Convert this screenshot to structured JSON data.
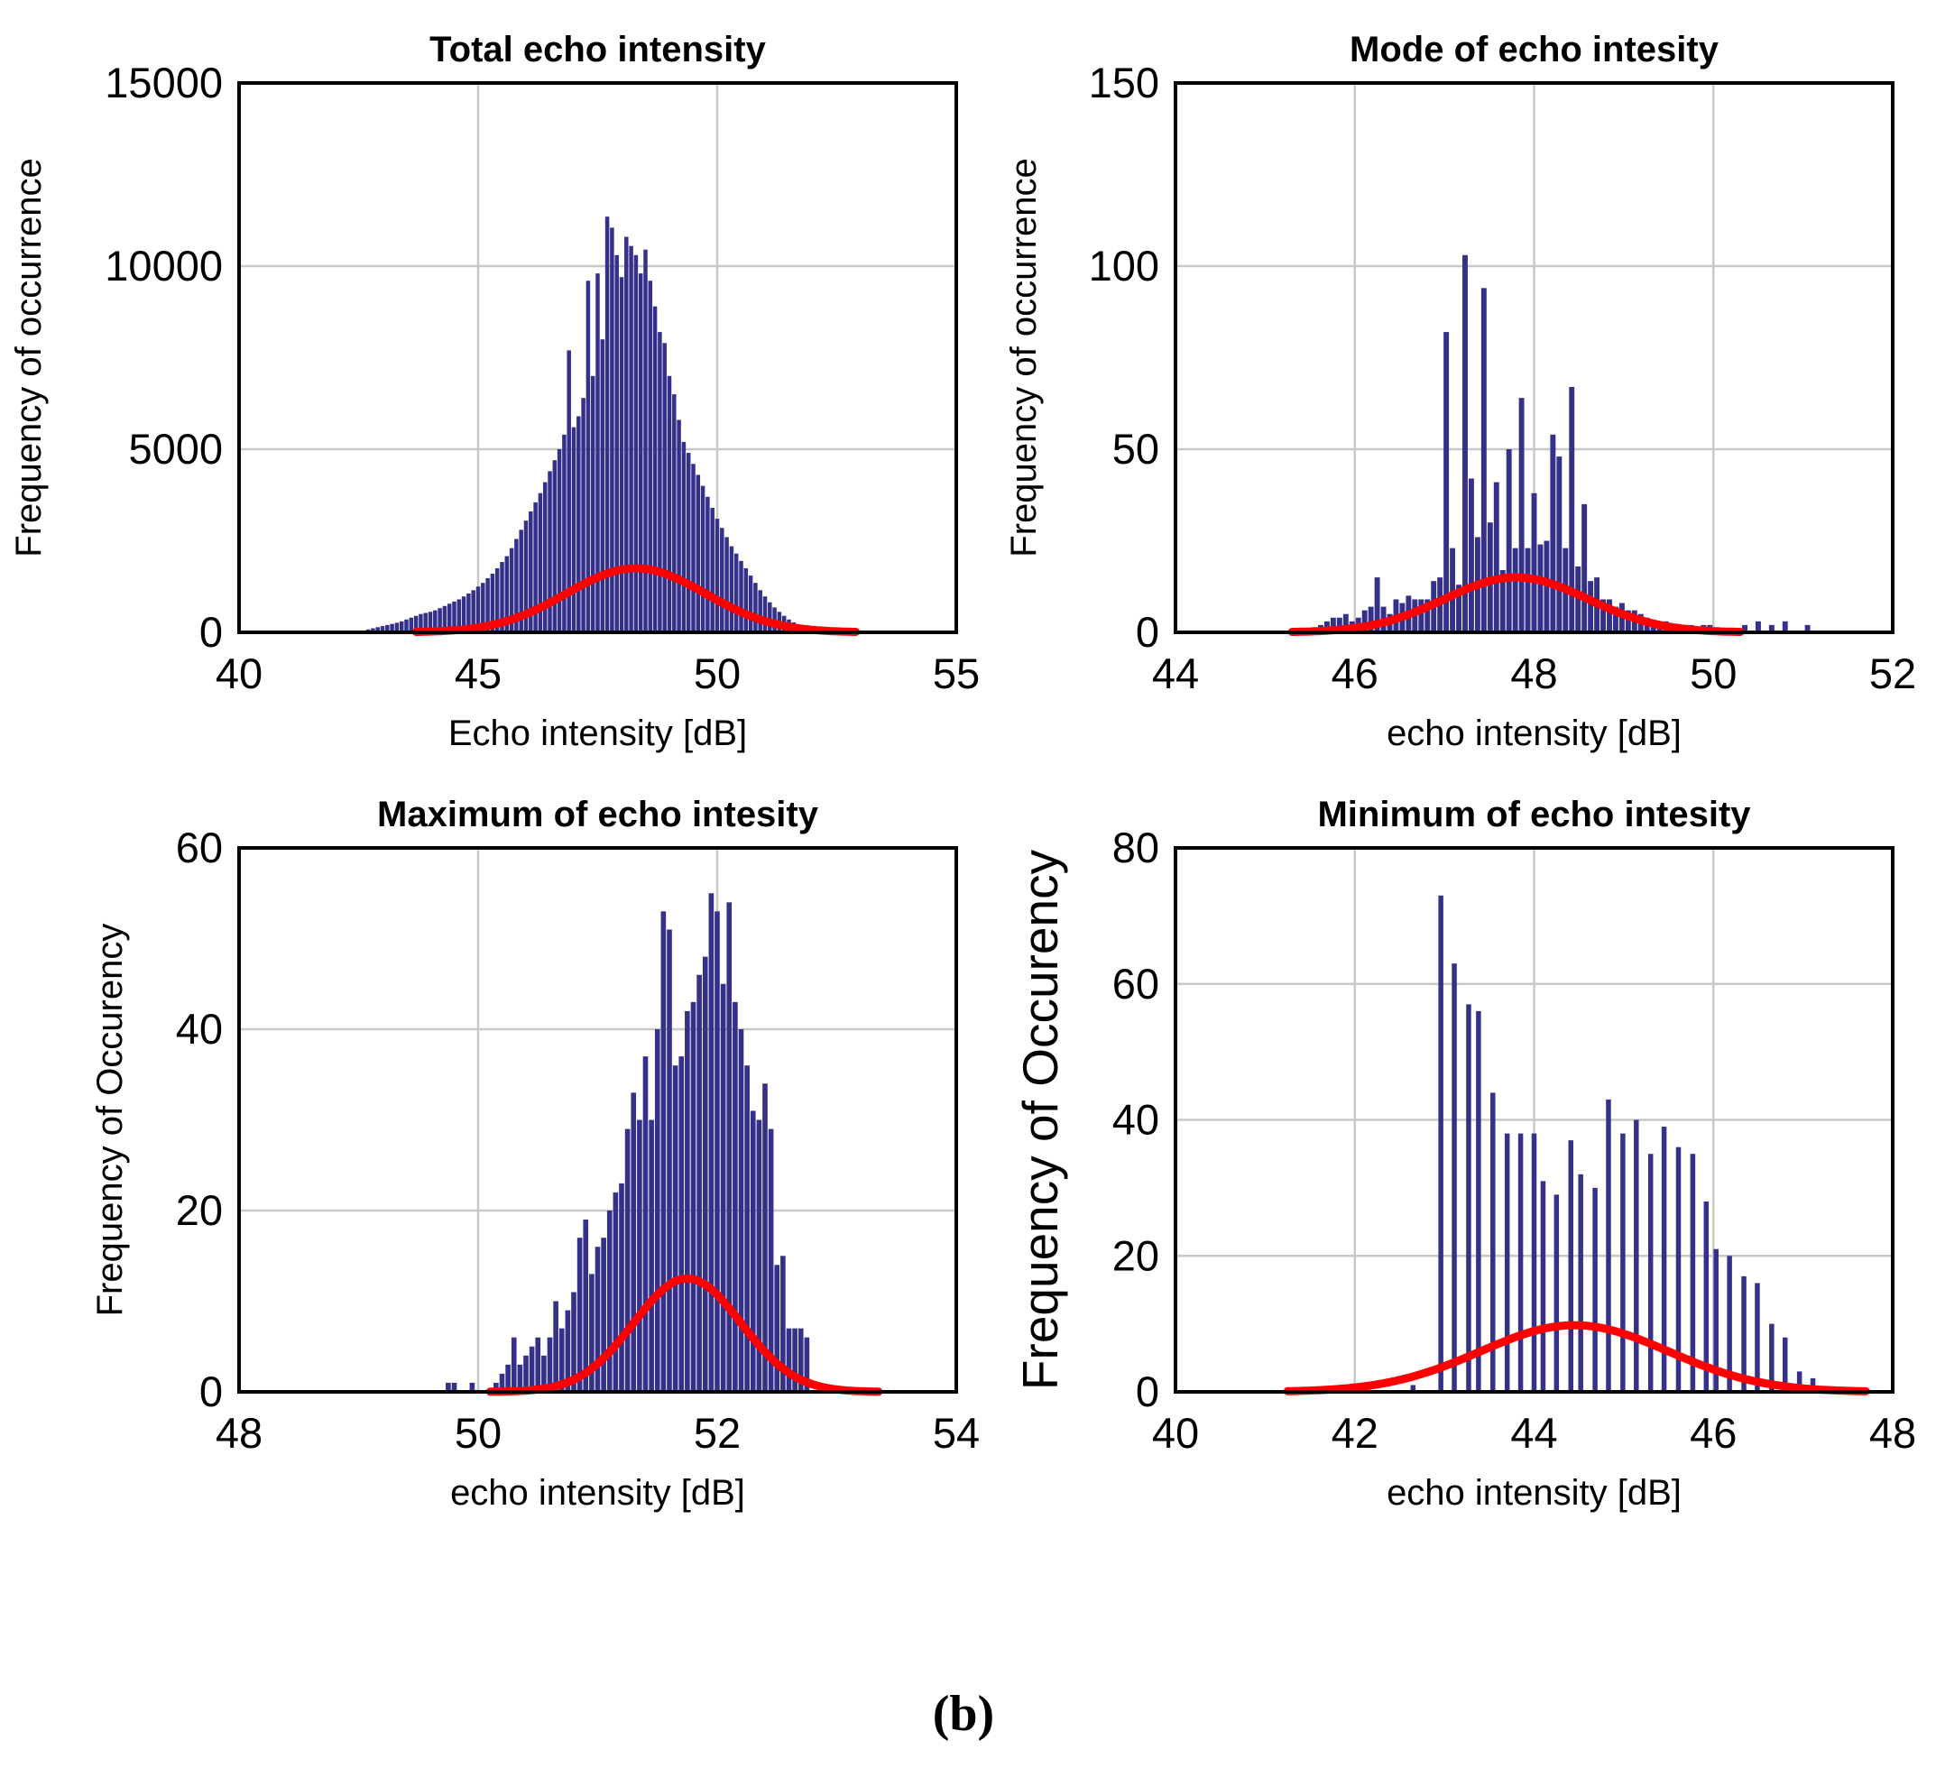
{
  "caption": "(b)",
  "colors": {
    "bar": "#35308a",
    "fit": "#ff0000",
    "grid": "#c8c8c8"
  },
  "chart_data": [
    {
      "type": "bar",
      "title": "Total echo intensity",
      "xlabel": "Echo intensity [dB]",
      "ylabel": "Frequency of occurrence",
      "xlim": [
        40,
        55
      ],
      "ylim": [
        0,
        15000
      ],
      "xticks": [
        40,
        45,
        50,
        55
      ],
      "yticks": [
        0,
        5000,
        10000,
        15000
      ],
      "xtick_labels": [
        "40",
        "45",
        "50",
        "55"
      ],
      "ytick_labels": [
        "0",
        "5000",
        "10000",
        "15000"
      ],
      "bin_width": 0.1,
      "bars": [
        [
          42.7,
          80
        ],
        [
          42.8,
          110
        ],
        [
          42.9,
          140
        ],
        [
          43.0,
          170
        ],
        [
          43.1,
          200
        ],
        [
          43.2,
          230
        ],
        [
          43.3,
          260
        ],
        [
          43.4,
          300
        ],
        [
          43.5,
          350
        ],
        [
          43.6,
          400
        ],
        [
          43.7,
          450
        ],
        [
          43.8,
          500
        ],
        [
          43.9,
          530
        ],
        [
          44.0,
          560
        ],
        [
          44.1,
          600
        ],
        [
          44.2,
          660
        ],
        [
          44.3,
          720
        ],
        [
          44.4,
          780
        ],
        [
          44.5,
          840
        ],
        [
          44.6,
          900
        ],
        [
          44.7,
          980
        ],
        [
          44.8,
          1060
        ],
        [
          44.9,
          1150
        ],
        [
          45.0,
          1250
        ],
        [
          45.1,
          1350
        ],
        [
          45.2,
          1480
        ],
        [
          45.3,
          1600
        ],
        [
          45.4,
          1750
        ],
        [
          45.5,
          1920
        ],
        [
          45.6,
          2080
        ],
        [
          45.7,
          2300
        ],
        [
          45.8,
          2550
        ],
        [
          45.9,
          2800
        ],
        [
          46.0,
          3050
        ],
        [
          46.1,
          3300
        ],
        [
          46.2,
          3550
        ],
        [
          46.3,
          3800
        ],
        [
          46.4,
          4100
        ],
        [
          46.5,
          4400
        ],
        [
          46.6,
          4700
        ],
        [
          46.7,
          5000
        ],
        [
          46.8,
          5400
        ],
        [
          46.9,
          7700
        ],
        [
          47.0,
          5600
        ],
        [
          47.1,
          5900
        ],
        [
          47.2,
          6400
        ],
        [
          47.3,
          9600
        ],
        [
          47.4,
          7000
        ],
        [
          47.5,
          9800
        ],
        [
          47.6,
          8000
        ],
        [
          47.7,
          11350
        ],
        [
          47.8,
          11050
        ],
        [
          47.9,
          10300
        ],
        [
          48.0,
          9700
        ],
        [
          48.1,
          10800
        ],
        [
          48.2,
          10550
        ],
        [
          48.3,
          10300
        ],
        [
          48.4,
          9800
        ],
        [
          48.5,
          10450
        ],
        [
          48.6,
          9600
        ],
        [
          48.7,
          8900
        ],
        [
          48.8,
          8200
        ],
        [
          48.9,
          7900
        ],
        [
          49.0,
          7000
        ],
        [
          49.1,
          6500
        ],
        [
          49.2,
          5800
        ],
        [
          49.3,
          5200
        ],
        [
          49.4,
          4900
        ],
        [
          49.5,
          4600
        ],
        [
          49.6,
          4300
        ],
        [
          49.7,
          4000
        ],
        [
          49.8,
          3700
        ],
        [
          49.9,
          3400
        ],
        [
          50.0,
          3100
        ],
        [
          50.1,
          2850
        ],
        [
          50.2,
          2600
        ],
        [
          50.3,
          2350
        ],
        [
          50.4,
          2150
        ],
        [
          50.5,
          1950
        ],
        [
          50.6,
          1750
        ],
        [
          50.7,
          1550
        ],
        [
          50.8,
          1350
        ],
        [
          50.9,
          1150
        ],
        [
          51.0,
          980
        ],
        [
          51.1,
          820
        ],
        [
          51.2,
          680
        ],
        [
          51.3,
          560
        ],
        [
          51.4,
          450
        ],
        [
          51.5,
          350
        ],
        [
          51.6,
          270
        ],
        [
          51.7,
          200
        ],
        [
          51.8,
          140
        ],
        [
          51.9,
          90
        ],
        [
          52.0,
          50
        ]
      ],
      "fit": {
        "mean": 48.3,
        "sigma": 1.45,
        "peak": 1750,
        "x_range": [
          43.7,
          52.9
        ]
      }
    },
    {
      "type": "bar",
      "title": "Mode of echo intesity",
      "xlabel": "echo intensity [dB]",
      "ylabel": "Frequency of occurrence",
      "xlim": [
        44,
        52
      ],
      "ylim": [
        0,
        150
      ],
      "xticks": [
        44,
        46,
        48,
        50,
        52
      ],
      "yticks": [
        0,
        50,
        100,
        150
      ],
      "xtick_labels": [
        "44",
        "46",
        "48",
        "50",
        "52"
      ],
      "ytick_labels": [
        "0",
        "50",
        "100",
        "150"
      ],
      "bin_width": 0.07,
      "bars": [
        [
          45.55,
          1
        ],
        [
          45.62,
          2
        ],
        [
          45.69,
          3
        ],
        [
          45.76,
          4
        ],
        [
          45.83,
          4
        ],
        [
          45.9,
          5
        ],
        [
          45.97,
          3
        ],
        [
          46.04,
          4
        ],
        [
          46.11,
          6
        ],
        [
          46.18,
          7
        ],
        [
          46.25,
          15
        ],
        [
          46.32,
          7
        ],
        [
          46.39,
          5
        ],
        [
          46.46,
          9
        ],
        [
          46.53,
          8
        ],
        [
          46.6,
          10
        ],
        [
          46.67,
          9
        ],
        [
          46.74,
          9
        ],
        [
          46.81,
          9
        ],
        [
          46.88,
          14
        ],
        [
          46.95,
          15
        ],
        [
          47.02,
          82
        ],
        [
          47.09,
          23
        ],
        [
          47.16,
          13
        ],
        [
          47.23,
          103
        ],
        [
          47.3,
          42
        ],
        [
          47.37,
          26
        ],
        [
          47.44,
          94
        ],
        [
          47.51,
          30
        ],
        [
          47.58,
          41
        ],
        [
          47.65,
          17
        ],
        [
          47.72,
          50
        ],
        [
          47.79,
          23
        ],
        [
          47.86,
          64
        ],
        [
          47.93,
          23
        ],
        [
          48.0,
          38
        ],
        [
          48.07,
          24
        ],
        [
          48.14,
          25
        ],
        [
          48.21,
          54
        ],
        [
          48.28,
          48
        ],
        [
          48.35,
          23
        ],
        [
          48.42,
          67
        ],
        [
          48.49,
          18
        ],
        [
          48.56,
          35
        ],
        [
          48.63,
          14
        ],
        [
          48.7,
          15
        ],
        [
          48.77,
          9
        ],
        [
          48.84,
          9
        ],
        [
          48.91,
          7
        ],
        [
          48.98,
          8
        ],
        [
          49.05,
          6
        ],
        [
          49.12,
          6
        ],
        [
          49.19,
          5
        ],
        [
          49.26,
          4
        ],
        [
          49.33,
          3
        ],
        [
          49.4,
          3
        ],
        [
          49.47,
          3
        ],
        [
          49.54,
          2
        ],
        [
          49.61,
          2
        ],
        [
          49.68,
          2
        ],
        [
          49.75,
          2
        ],
        [
          49.82,
          1
        ],
        [
          49.89,
          2
        ],
        [
          49.96,
          2
        ],
        [
          50.03,
          1
        ],
        [
          50.2,
          1
        ],
        [
          50.35,
          2
        ],
        [
          50.5,
          3
        ],
        [
          50.65,
          2
        ],
        [
          50.8,
          3
        ],
        [
          51.05,
          2
        ]
      ],
      "fit": {
        "mean": 47.8,
        "sigma": 0.8,
        "peak": 15,
        "x_range": [
          45.3,
          50.3
        ]
      }
    },
    {
      "type": "bar",
      "title": "Maximum of echo intesity",
      "xlabel": "echo intensity [dB]",
      "ylabel": "Frequency of Occurency",
      "xlim": [
        48,
        54
      ],
      "ylim": [
        0,
        60
      ],
      "xticks": [
        48,
        50,
        52,
        54
      ],
      "yticks": [
        0,
        20,
        40,
        60
      ],
      "xtick_labels": [
        "48",
        "50",
        "52",
        "54"
      ],
      "ytick_labels": [
        "0",
        "20",
        "40",
        "60"
      ],
      "bin_width": 0.05,
      "bars": [
        [
          49.75,
          1
        ],
        [
          49.8,
          1
        ],
        [
          49.95,
          1
        ],
        [
          50.15,
          1
        ],
        [
          50.2,
          2
        ],
        [
          50.25,
          3
        ],
        [
          50.3,
          6
        ],
        [
          50.35,
          3
        ],
        [
          50.4,
          4
        ],
        [
          50.45,
          5
        ],
        [
          50.5,
          6
        ],
        [
          50.55,
          4
        ],
        [
          50.6,
          6
        ],
        [
          50.65,
          10
        ],
        [
          50.7,
          7
        ],
        [
          50.75,
          9
        ],
        [
          50.8,
          11
        ],
        [
          50.85,
          17
        ],
        [
          50.9,
          19
        ],
        [
          50.95,
          13
        ],
        [
          51.0,
          16
        ],
        [
          51.05,
          17
        ],
        [
          51.1,
          20
        ],
        [
          51.15,
          22
        ],
        [
          51.2,
          23
        ],
        [
          51.25,
          29
        ],
        [
          51.3,
          33
        ],
        [
          51.35,
          30
        ],
        [
          51.4,
          37
        ],
        [
          51.45,
          30
        ],
        [
          51.5,
          40
        ],
        [
          51.55,
          53
        ],
        [
          51.6,
          51
        ],
        [
          51.65,
          36
        ],
        [
          51.7,
          37
        ],
        [
          51.75,
          42
        ],
        [
          51.8,
          43
        ],
        [
          51.85,
          46
        ],
        [
          51.9,
          48
        ],
        [
          51.95,
          55
        ],
        [
          52.0,
          53
        ],
        [
          52.05,
          45
        ],
        [
          52.1,
          54
        ],
        [
          52.15,
          43
        ],
        [
          52.2,
          40
        ],
        [
          52.25,
          36
        ],
        [
          52.3,
          31
        ],
        [
          52.35,
          30
        ],
        [
          52.4,
          34
        ],
        [
          52.45,
          29
        ],
        [
          52.5,
          14
        ],
        [
          52.55,
          15
        ],
        [
          52.6,
          7
        ],
        [
          52.65,
          7
        ],
        [
          52.7,
          7
        ],
        [
          52.75,
          6
        ]
      ],
      "fit": {
        "mean": 51.75,
        "sigma": 0.45,
        "peak": 12.5,
        "x_range": [
          50.1,
          53.35
        ]
      }
    },
    {
      "type": "bar",
      "title": "Minimum of echo intesity",
      "xlabel": "echo intensity [dB]",
      "ylabel": "Frequency of Occurency",
      "xlim": [
        40,
        48
      ],
      "ylim": [
        0,
        80
      ],
      "xticks": [
        40,
        42,
        44,
        46,
        48
      ],
      "yticks": [
        0,
        20,
        40,
        60,
        80
      ],
      "xtick_labels": [
        "40",
        "42",
        "44",
        "46",
        "48"
      ],
      "ytick_labels": [
        "0",
        "20",
        "40",
        "60",
        "80"
      ],
      "bin_width": 0.065,
      "bars": [
        [
          42.65,
          1
        ],
        [
          42.96,
          73
        ],
        [
          43.11,
          63
        ],
        [
          43.27,
          57
        ],
        [
          43.38,
          56
        ],
        [
          43.54,
          44
        ],
        [
          43.7,
          38
        ],
        [
          43.85,
          38
        ],
        [
          44.0,
          38
        ],
        [
          44.1,
          31
        ],
        [
          44.25,
          29
        ],
        [
          44.41,
          37
        ],
        [
          44.52,
          32
        ],
        [
          44.68,
          30
        ],
        [
          44.83,
          43
        ],
        [
          44.99,
          38
        ],
        [
          45.14,
          40
        ],
        [
          45.3,
          35
        ],
        [
          45.45,
          39
        ],
        [
          45.61,
          36
        ],
        [
          45.77,
          35
        ],
        [
          45.92,
          28
        ],
        [
          46.03,
          21
        ],
        [
          46.18,
          20
        ],
        [
          46.34,
          17
        ],
        [
          46.49,
          16
        ],
        [
          46.65,
          10
        ],
        [
          46.8,
          8
        ],
        [
          46.96,
          3
        ],
        [
          47.11,
          2
        ]
      ],
      "fit": {
        "mean": 44.45,
        "sigma": 1.05,
        "peak": 9.8,
        "x_range": [
          41.25,
          47.7
        ]
      }
    }
  ]
}
